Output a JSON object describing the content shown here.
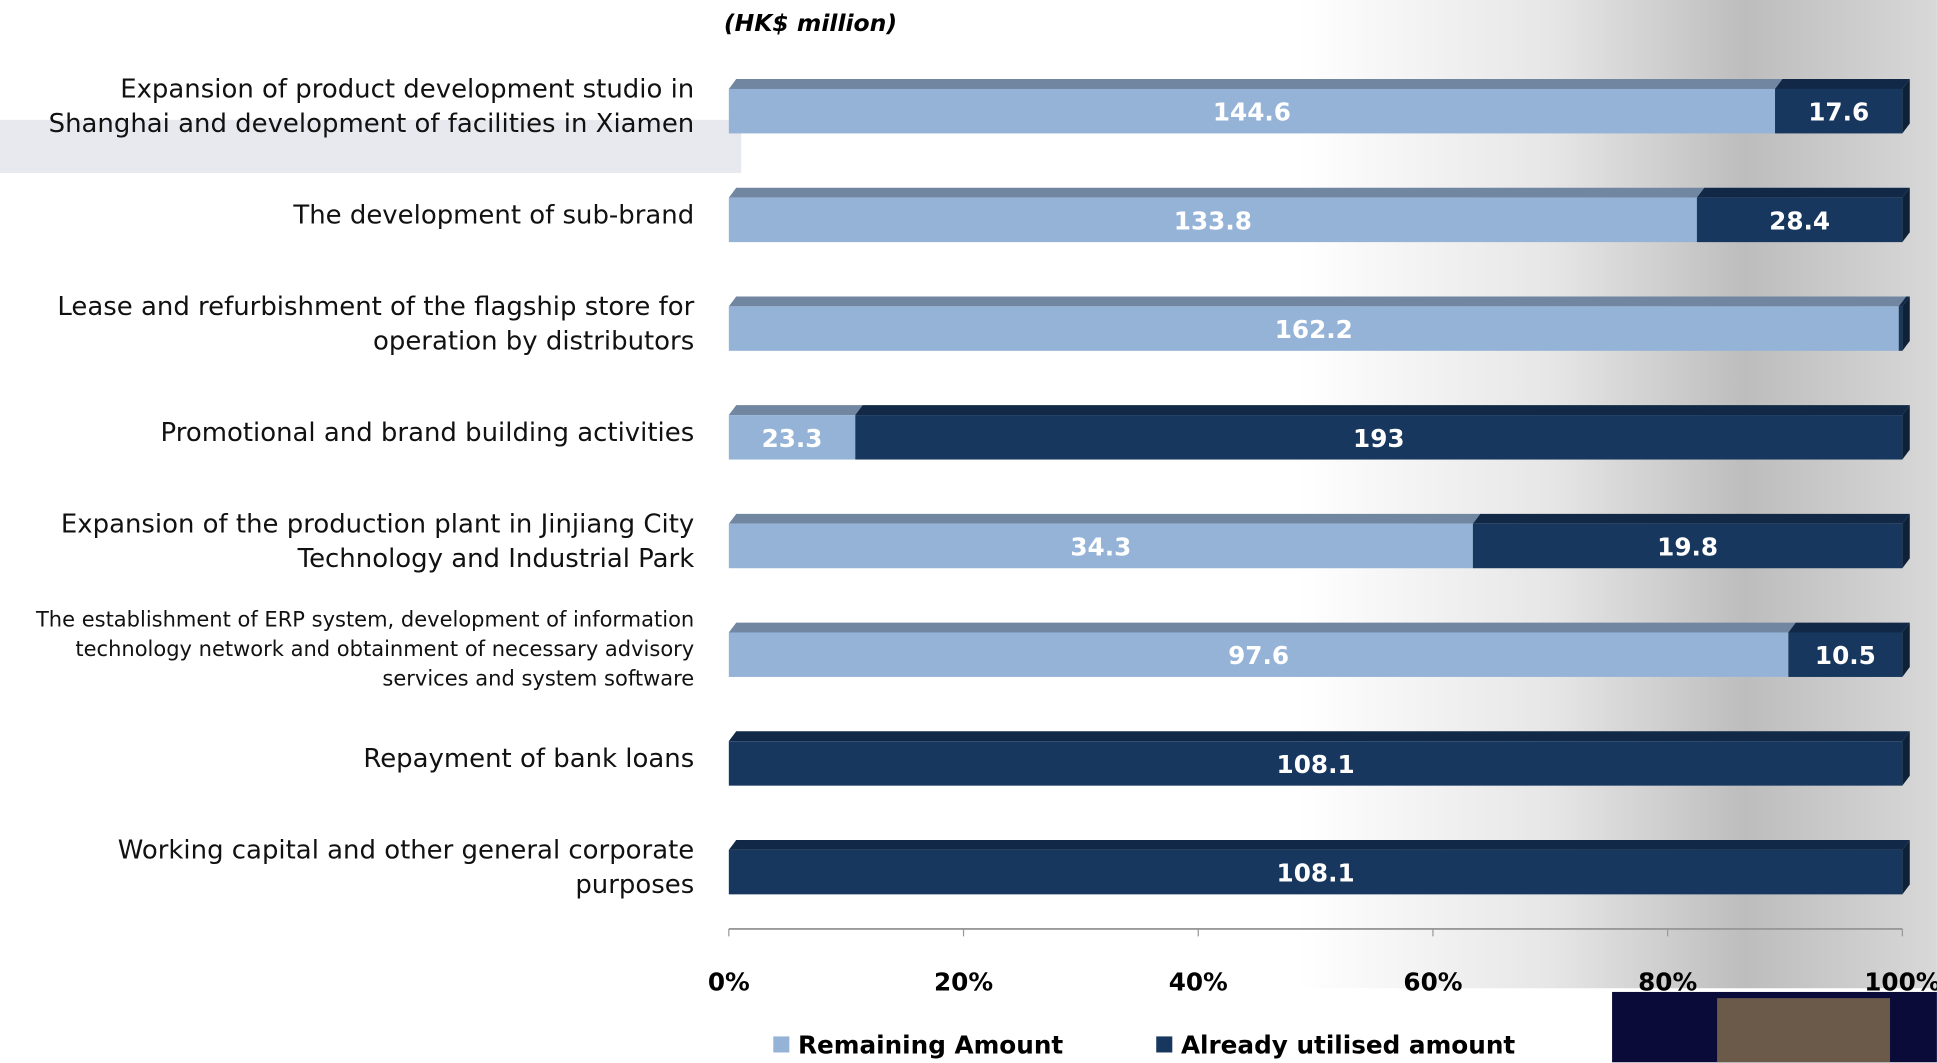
{
  "chart_data": {
    "type": "bar",
    "orientation": "horizontal",
    "stacked": "percent",
    "subtitle": "(HK$ million)",
    "categories": [
      "Expansion of product development studio in\nShanghai and development of facilities in Xiamen",
      "The development of sub-brand",
      "Lease and refurbishment of the flagship store for\noperation by distributors",
      "Promotional and brand building activities",
      "Expansion of the production plant in Jinjiang City\nTechnology and Industrial Park",
      "The establishment of ERP system, development of information\ntechnology network and obtainment of necessary advisory\nservices and system software",
      "Repayment of bank loans",
      "Working capital and other general corporate\npurposes"
    ],
    "series": [
      {
        "name": "Remaining Amount",
        "color": "#95b3d7",
        "values": [
          144.6,
          133.8,
          162.2,
          23.3,
          34.3,
          97.6,
          0,
          0
        ]
      },
      {
        "name": "Already utilised amount",
        "color": "#17375e",
        "values": [
          17.6,
          28.4,
          0.5,
          193.0,
          19.8,
          10.5,
          108.1,
          108.1
        ]
      }
    ],
    "xlim": [
      0,
      100
    ],
    "xticks": [
      {
        "value": 0,
        "label": "0%"
      },
      {
        "value": 20,
        "label": "20%"
      },
      {
        "value": 40,
        "label": "40%"
      },
      {
        "value": 60,
        "label": "60%"
      },
      {
        "value": 80,
        "label": "80%"
      },
      {
        "value": 100,
        "label": "100%"
      }
    ],
    "legend": "bottom"
  }
}
